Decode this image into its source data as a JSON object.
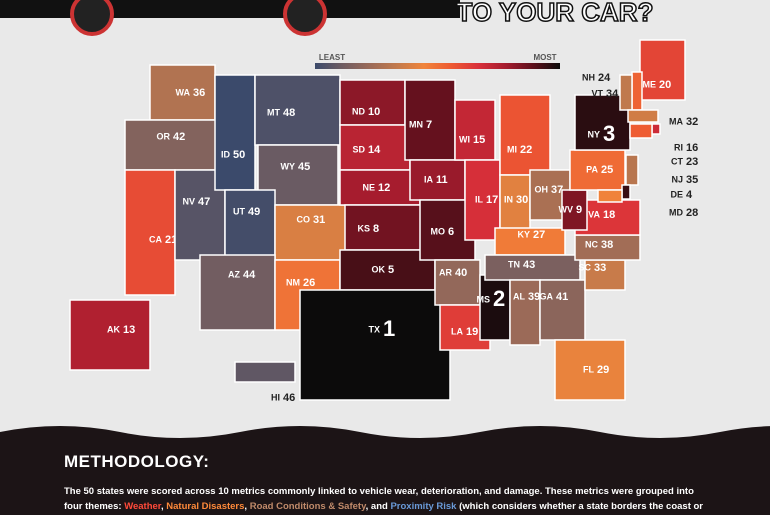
{
  "header": {
    "title": "TO YOUR CAR?"
  },
  "legend": {
    "low": "LEAST",
    "high": "MOST",
    "colors": [
      "#3b4a6b",
      "#6e5c62",
      "#9a6a58",
      "#c27a4c",
      "#f0843a",
      "#ee5a32",
      "#d9303a",
      "#a51c2e",
      "#5e101c",
      "#0c0b0b"
    ]
  },
  "map": {
    "states": [
      {
        "abbr": "WA",
        "rank": 36
      },
      {
        "abbr": "OR",
        "rank": 42
      },
      {
        "abbr": "CA",
        "rank": 21
      },
      {
        "abbr": "NV",
        "rank": 47
      },
      {
        "abbr": "ID",
        "rank": 50
      },
      {
        "abbr": "MT",
        "rank": 48
      },
      {
        "abbr": "WY",
        "rank": 45
      },
      {
        "abbr": "UT",
        "rank": 49
      },
      {
        "abbr": "CO",
        "rank": 31
      },
      {
        "abbr": "AZ",
        "rank": 44
      },
      {
        "abbr": "NM",
        "rank": 26
      },
      {
        "abbr": "ND",
        "rank": 10
      },
      {
        "abbr": "SD",
        "rank": 14
      },
      {
        "abbr": "NE",
        "rank": 12
      },
      {
        "abbr": "KS",
        "rank": 8
      },
      {
        "abbr": "OK",
        "rank": 5
      },
      {
        "abbr": "TX",
        "rank": 1
      },
      {
        "abbr": "MN",
        "rank": 7
      },
      {
        "abbr": "IA",
        "rank": 11
      },
      {
        "abbr": "MO",
        "rank": 6
      },
      {
        "abbr": "AR",
        "rank": 40
      },
      {
        "abbr": "LA",
        "rank": 19
      },
      {
        "abbr": "WI",
        "rank": 15
      },
      {
        "abbr": "IL",
        "rank": 17
      },
      {
        "abbr": "MS",
        "rank": 2
      },
      {
        "abbr": "MI",
        "rank": 22
      },
      {
        "abbr": "IN",
        "rank": 30
      },
      {
        "abbr": "OH",
        "rank": 37
      },
      {
        "abbr": "KY",
        "rank": 27
      },
      {
        "abbr": "TN",
        "rank": 43
      },
      {
        "abbr": "AL",
        "rank": 39
      },
      {
        "abbr": "GA",
        "rank": 41
      },
      {
        "abbr": "FL",
        "rank": 29
      },
      {
        "abbr": "SC",
        "rank": 33
      },
      {
        "abbr": "NC",
        "rank": 38
      },
      {
        "abbr": "VA",
        "rank": 18
      },
      {
        "abbr": "WV",
        "rank": 9
      },
      {
        "abbr": "PA",
        "rank": 25
      },
      {
        "abbr": "NY",
        "rank": 3
      },
      {
        "abbr": "ME",
        "rank": 20
      },
      {
        "abbr": "NH",
        "rank": 24
      },
      {
        "abbr": "VT",
        "rank": 34
      },
      {
        "abbr": "MA",
        "rank": 32
      },
      {
        "abbr": "RI",
        "rank": 16
      },
      {
        "abbr": "CT",
        "rank": 23
      },
      {
        "abbr": "NJ",
        "rank": 35
      },
      {
        "abbr": "DE",
        "rank": 4
      },
      {
        "abbr": "MD",
        "rank": 28
      },
      {
        "abbr": "AK",
        "rank": 13
      },
      {
        "abbr": "HI",
        "rank": 46
      }
    ]
  },
  "methodology": {
    "heading": "METHODOLOGY:",
    "intro": "The 50 states were scored across 10 metrics commonly linked to vehicle wear, deterioration, and damage. These metrics were grouped into four themes:",
    "themes": [
      "Weather",
      "Natural Disasters",
      "Road Conditions & Safety",
      "Proximity Risk"
    ],
    "sep1": ",",
    "sep2": ",",
    "sep3": ", and",
    "outro": "(which considers whether a state borders the coast or lies within the"
  }
}
